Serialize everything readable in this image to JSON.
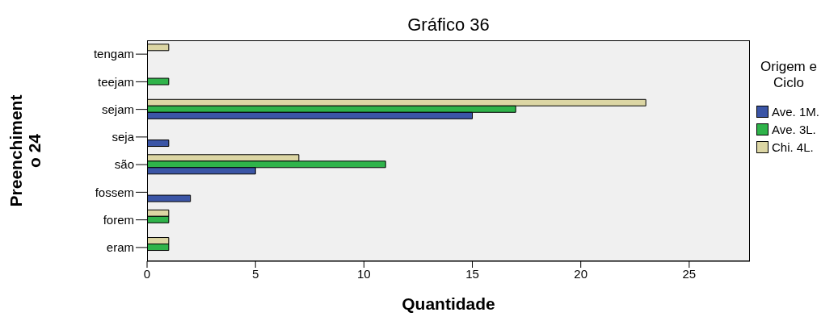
{
  "chart_data": {
    "type": "bar",
    "orientation": "horizontal",
    "title": "Gráfico 36",
    "xlabel": "Quantidade",
    "ylabel": "Preenchimento 24",
    "legend_title": "Origem e Ciclo",
    "legend": "right",
    "categories": [
      "tengam",
      "teejam",
      "sejam",
      "seja",
      "são",
      "fossem",
      "forem",
      "eram"
    ],
    "series": [
      {
        "name": "Ave. 1M.",
        "color": "#3b55a6",
        "values": [
          null,
          null,
          15,
          1,
          5,
          2,
          null,
          null
        ]
      },
      {
        "name": "Ave. 3L.",
        "color": "#2fb34a",
        "values": [
          null,
          1,
          17,
          null,
          11,
          null,
          1,
          1
        ]
      },
      {
        "name": "Chi. 4L.",
        "color": "#dcd6a4",
        "values": [
          1,
          null,
          23,
          null,
          7,
          null,
          1,
          1
        ]
      }
    ],
    "xlim": [
      0,
      27.8
    ],
    "xticks": [
      0,
      5,
      10,
      15,
      20,
      25
    ]
  }
}
